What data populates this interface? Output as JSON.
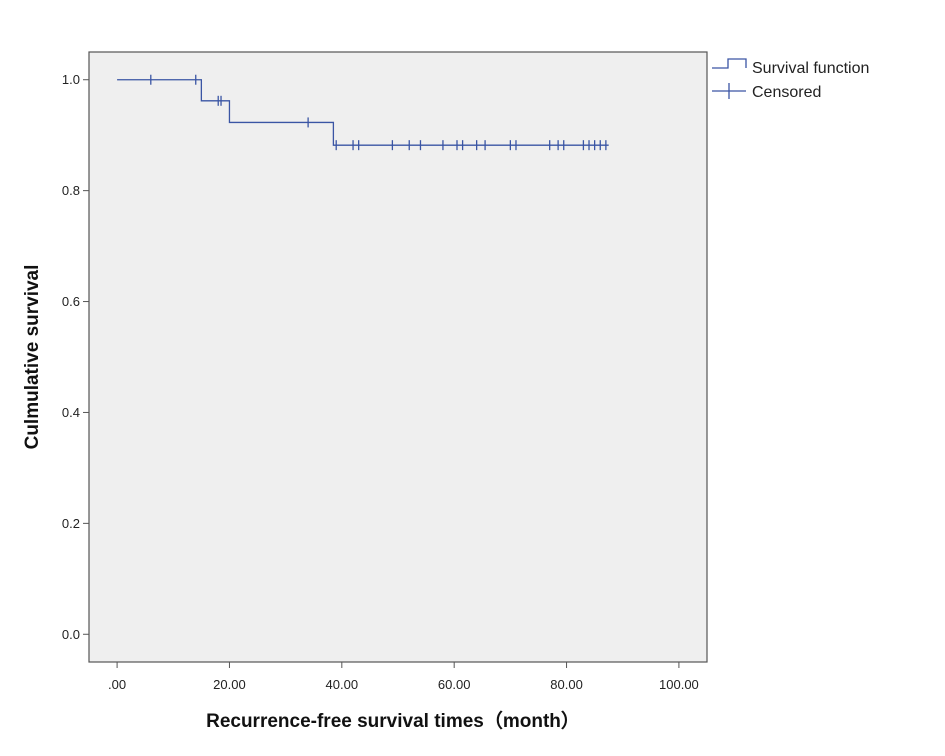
{
  "chart_data": {
    "type": "line",
    "title": "",
    "xlabel": "Recurrence-free survival times（month）",
    "ylabel": "Culmulative survival",
    "xlim": [
      -5,
      105
    ],
    "ylim": [
      -0.05,
      1.05
    ],
    "x_ticks": [
      0,
      20,
      40,
      60,
      80,
      100
    ],
    "x_tick_labels": [
      ".00",
      "20.00",
      "40.00",
      "60.00",
      "80.00",
      "100.00"
    ],
    "y_ticks": [
      0.0,
      0.2,
      0.4,
      0.6,
      0.8,
      1.0
    ],
    "y_tick_labels": [
      "0.0",
      "0.2",
      "0.4",
      "0.6",
      "0.8",
      "1.0"
    ],
    "grid": false,
    "legend_position": "right-top",
    "colors": {
      "series": "#3a55a4",
      "plot_bg": "#efefef",
      "axis": "#555555"
    },
    "series": [
      {
        "name": "Survival function",
        "kind": "step",
        "x": [
          0,
          15,
          20,
          38.5,
          87.5
        ],
        "y": [
          1.0,
          0.962,
          0.923,
          0.882,
          0.882
        ]
      },
      {
        "name": "Censored",
        "kind": "markers",
        "x": [
          6,
          14,
          18,
          18.5,
          34,
          39,
          42,
          43,
          49,
          52,
          54,
          58,
          60.5,
          61.5,
          64,
          65.5,
          70,
          71,
          77,
          78.5,
          79.5,
          83,
          84,
          85,
          86,
          87
        ],
        "y": [
          1.0,
          1.0,
          0.962,
          0.962,
          0.923,
          0.882,
          0.882,
          0.882,
          0.882,
          0.882,
          0.882,
          0.882,
          0.882,
          0.882,
          0.882,
          0.882,
          0.882,
          0.882,
          0.882,
          0.882,
          0.882,
          0.882,
          0.882,
          0.882,
          0.882,
          0.882
        ]
      }
    ]
  }
}
